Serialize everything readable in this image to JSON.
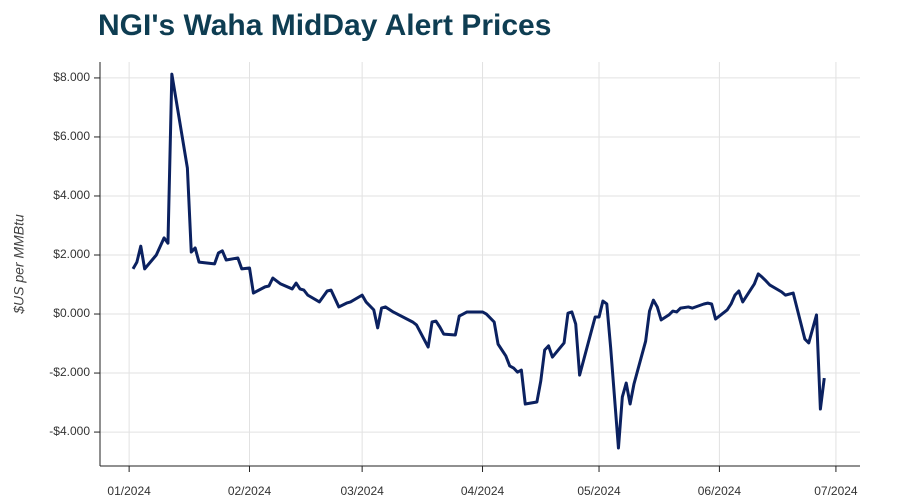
{
  "chart_data": {
    "type": "line",
    "title": "NGI's Waha MidDay Alert Prices",
    "y_label": "$US per MMBtu",
    "x": [
      1,
      2,
      3,
      4,
      7,
      9,
      10,
      11,
      15,
      16,
      17,
      18,
      22,
      23,
      24,
      25,
      28,
      29,
      31,
      32,
      35,
      36,
      37,
      39,
      42,
      43,
      44,
      45,
      46,
      49,
      51,
      52,
      54,
      56,
      57,
      60,
      61,
      63,
      64,
      65,
      66,
      68,
      73,
      74,
      77,
      78,
      79,
      80,
      81,
      84,
      85,
      86,
      87,
      91,
      92,
      94,
      95,
      97,
      98,
      99,
      100,
      101,
      102,
      105,
      106,
      107,
      108,
      109,
      112,
      113,
      114,
      115,
      116,
      120,
      121,
      122,
      123,
      124,
      126,
      127,
      128,
      129,
      130,
      133,
      134,
      135,
      136,
      137,
      139,
      140,
      141,
      142,
      144,
      145,
      148,
      149,
      150,
      151,
      154,
      155,
      156,
      157,
      158,
      161,
      162,
      163,
      164,
      165,
      168,
      169,
      171,
      174,
      175,
      177,
      178,
      179
    ],
    "series": [
      {
        "name": "Waha MidDay Alert",
        "color": "#0b2160",
        "values": [
          1.53,
          1.76,
          2.3,
          1.53,
          2.0,
          2.58,
          2.4,
          8.13,
          4.95,
          2.1,
          2.24,
          1.76,
          1.7,
          2.07,
          2.14,
          1.83,
          1.9,
          1.53,
          1.56,
          0.71,
          0.92,
          0.95,
          1.22,
          1.02,
          0.85,
          1.05,
          0.85,
          0.81,
          0.64,
          0.41,
          0.78,
          0.81,
          0.24,
          0.37,
          0.41,
          0.64,
          0.41,
          0.14,
          -0.47,
          0.2,
          0.24,
          0.07,
          -0.27,
          -0.37,
          -1.12,
          -0.27,
          -0.24,
          -0.44,
          -0.68,
          -0.71,
          -0.07,
          0,
          0.07,
          0.07,
          0,
          -0.27,
          -1.02,
          -1.42,
          -1.76,
          -1.83,
          -1.97,
          -1.9,
          -3.05,
          -2.98,
          -2.27,
          -1.22,
          -1.08,
          -1.46,
          -0.98,
          0.03,
          0.07,
          -0.34,
          -2.07,
          -0.1,
          -0.1,
          0.44,
          0.34,
          -1.15,
          -4.54,
          -2.81,
          -2.34,
          -3.05,
          -2.37,
          -0.92,
          0.1,
          0.47,
          0.24,
          -0.2,
          -0.03,
          0.1,
          0.07,
          0.2,
          0.24,
          0.2,
          0.34,
          0.37,
          0.34,
          -0.17,
          0.14,
          0.34,
          0.64,
          0.78,
          0.41,
          1.02,
          1.36,
          1.25,
          1.12,
          0.98,
          0.75,
          0.64,
          0.71,
          -0.85,
          -0.98,
          -0.03,
          -3.22,
          -2.17
        ]
      }
    ],
    "xlim": [
      -7.5,
      188.2
    ],
    "xticks": [
      {
        "value": 0,
        "label": "01/2024"
      },
      {
        "value": 31,
        "label": "02/2024"
      },
      {
        "value": 60,
        "label": "03/2024"
      },
      {
        "value": 91,
        "label": "04/2024"
      },
      {
        "value": 121,
        "label": "05/2024"
      },
      {
        "value": 152,
        "label": "06/2024"
      },
      {
        "value": 182,
        "label": "07/2024"
      }
    ],
    "ylim": [
      -5.15,
      8.54
    ],
    "yticks": [
      {
        "value": -4,
        "label": "-$4.000"
      },
      {
        "value": -2,
        "label": "-$2.000"
      },
      {
        "value": 0,
        "label": "$0.000"
      },
      {
        "value": 2,
        "label": "$2.000"
      },
      {
        "value": 4,
        "label": "$4.000"
      },
      {
        "value": 6,
        "label": "$6.000"
      },
      {
        "value": 8,
        "label": "$8.000"
      }
    ],
    "grid": true
  }
}
